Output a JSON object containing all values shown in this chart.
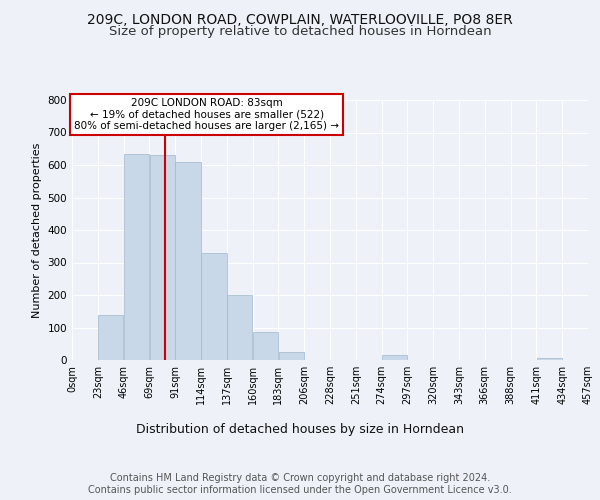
{
  "title1": "209C, LONDON ROAD, COWPLAIN, WATERLOOVILLE, PO8 8ER",
  "title2": "Size of property relative to detached houses in Horndean",
  "xlabel": "Distribution of detached houses by size in Horndean",
  "ylabel": "Number of detached properties",
  "footer": "Contains HM Land Registry data © Crown copyright and database right 2024.\nContains public sector information licensed under the Open Government Licence v3.0.",
  "bin_edges": [
    0,
    23,
    46,
    69,
    92,
    115,
    138,
    161,
    184,
    207,
    230,
    253,
    276,
    299,
    322,
    345,
    368,
    391,
    414,
    437,
    460
  ],
  "bin_labels": [
    "0sqm",
    "23sqm",
    "46sqm",
    "69sqm",
    "91sqm",
    "114sqm",
    "137sqm",
    "160sqm",
    "183sqm",
    "206sqm",
    "228sqm",
    "251sqm",
    "274sqm",
    "297sqm",
    "320sqm",
    "343sqm",
    "366sqm",
    "388sqm",
    "411sqm",
    "434sqm",
    "457sqm"
  ],
  "bar_heights": [
    0,
    140,
    635,
    630,
    610,
    330,
    200,
    85,
    25,
    0,
    0,
    0,
    15,
    0,
    0,
    0,
    0,
    0,
    5,
    0
  ],
  "bar_color": "#c8d8e8",
  "bar_edge_color": "#a0b8cc",
  "red_line_x": 83,
  "annotation_text": "209C LONDON ROAD: 83sqm\n← 19% of detached houses are smaller (522)\n80% of semi-detached houses are larger (2,165) →",
  "ylim": [
    0,
    800
  ],
  "yticks": [
    0,
    100,
    200,
    300,
    400,
    500,
    600,
    700,
    800
  ],
  "bg_color": "#eef2f8",
  "plot_bg_color": "#eef2f8",
  "grid_color": "#ffffff",
  "title1_fontsize": 10,
  "title2_fontsize": 9.5,
  "xlabel_fontsize": 9,
  "ylabel_fontsize": 8,
  "footer_fontsize": 7,
  "tick_fontsize": 7,
  "ann_fontsize": 7.5
}
